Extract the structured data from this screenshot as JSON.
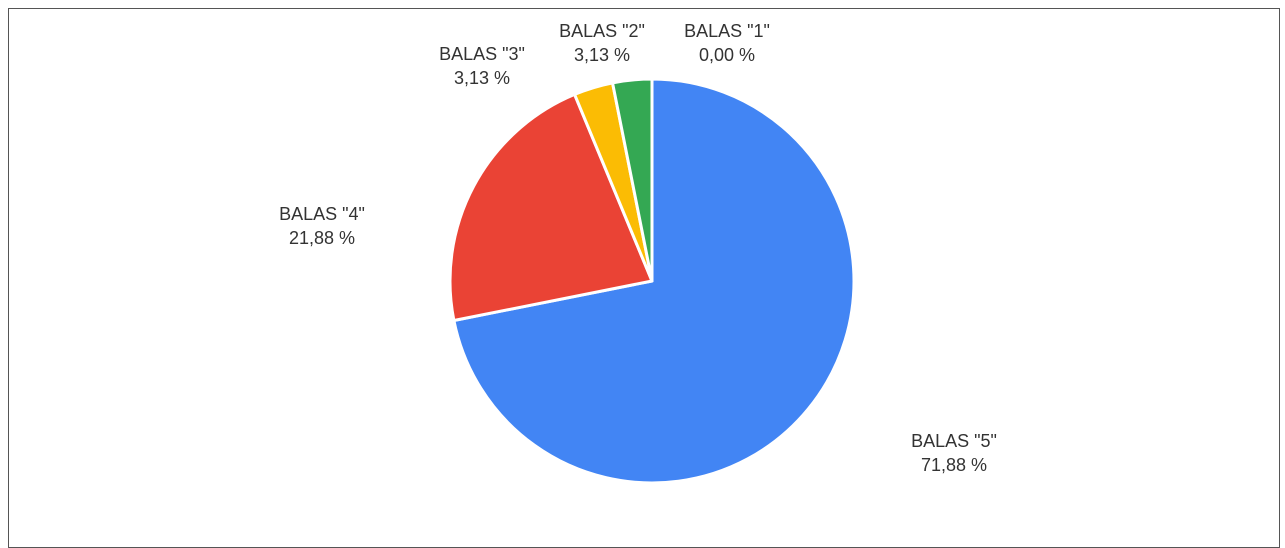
{
  "chart_data": {
    "type": "pie",
    "title": "",
    "slices": [
      {
        "label": "BALAS \"5\"",
        "value": 71.88,
        "value_label": "71,88 %",
        "color": "#4285f4"
      },
      {
        "label": "BALAS \"4\"",
        "value": 21.88,
        "value_label": "21,88 %",
        "color": "#ea4335"
      },
      {
        "label": "BALAS \"3\"",
        "value": 3.13,
        "value_label": "3,13 %",
        "color": "#fbbc04"
      },
      {
        "label": "BALAS \"2\"",
        "value": 3.13,
        "value_label": "3,13 %",
        "color": "#34a853"
      },
      {
        "label": "BALAS \"1\"",
        "value": 0.0,
        "value_label": "0,00 %",
        "color": "#ff6d01"
      }
    ],
    "start_angle": "12 o'clock",
    "direction": "clockwise",
    "legend": "none",
    "labels": "outside"
  }
}
